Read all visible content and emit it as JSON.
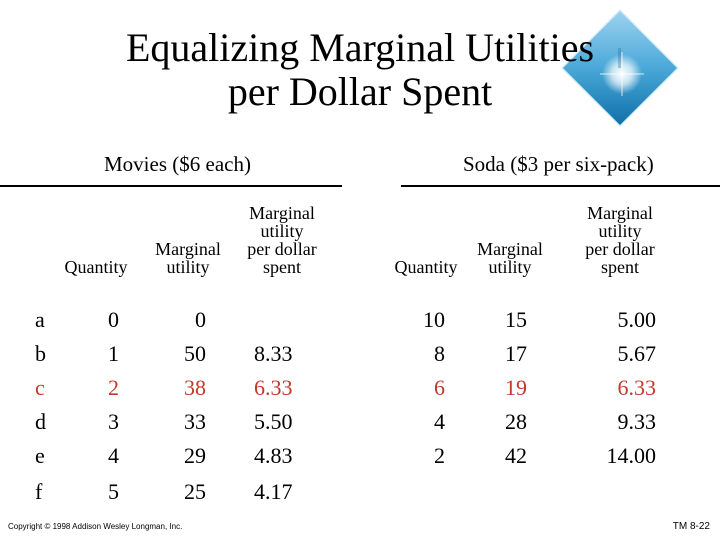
{
  "title_line1": "Equalizing Marginal Utilities",
  "title_line2": "per Dollar Spent",
  "movies": {
    "heading": "Movies ($6 each)",
    "col_quantity": "Quantity",
    "col_mu_line1": "Marginal",
    "col_mu_line2": "utility",
    "col_mupd_line1": "Marginal",
    "col_mupd_line2": "utility",
    "col_mupd_line3": "per dollar",
    "col_mupd_line4": "spent",
    "rows": [
      {
        "label": "a",
        "quantity": "0",
        "mu": "0",
        "mupd": ""
      },
      {
        "label": "b",
        "quantity": "1",
        "mu": "50",
        "mupd": "8.33"
      },
      {
        "label": "c",
        "quantity": "2",
        "mu": "38",
        "mupd": "6.33"
      },
      {
        "label": "d",
        "quantity": "3",
        "mu": "33",
        "mupd": "5.50"
      },
      {
        "label": "e",
        "quantity": "4",
        "mu": "29",
        "mupd": "4.83"
      },
      {
        "label": "f",
        "quantity": "5",
        "mu": "25",
        "mupd": "4.17"
      }
    ]
  },
  "soda": {
    "heading": "Soda ($3 per six-pack)",
    "col_quantity": "Quantity",
    "col_mu_line1": "Marginal",
    "col_mu_line2": "utility",
    "col_mupd_line1": "Marginal",
    "col_mupd_line2": "utility",
    "col_mupd_line3": "per dollar",
    "col_mupd_line4": "spent",
    "rows": [
      {
        "quantity": "10",
        "mu": "15",
        "mupd": "5.00"
      },
      {
        "quantity": "8",
        "mu": "17",
        "mupd": "5.67"
      },
      {
        "quantity": "6",
        "mu": "19",
        "mupd": "6.33"
      },
      {
        "quantity": "4",
        "mu": "28",
        "mupd": "9.33"
      },
      {
        "quantity": "2",
        "mu": "42",
        "mupd": "14.00"
      }
    ]
  },
  "highlight_color": "#c0392b",
  "footer_copyright": "Copyright © 1998 Addison Wesley Longman, Inc.",
  "footer_code": "TM 8-22"
}
